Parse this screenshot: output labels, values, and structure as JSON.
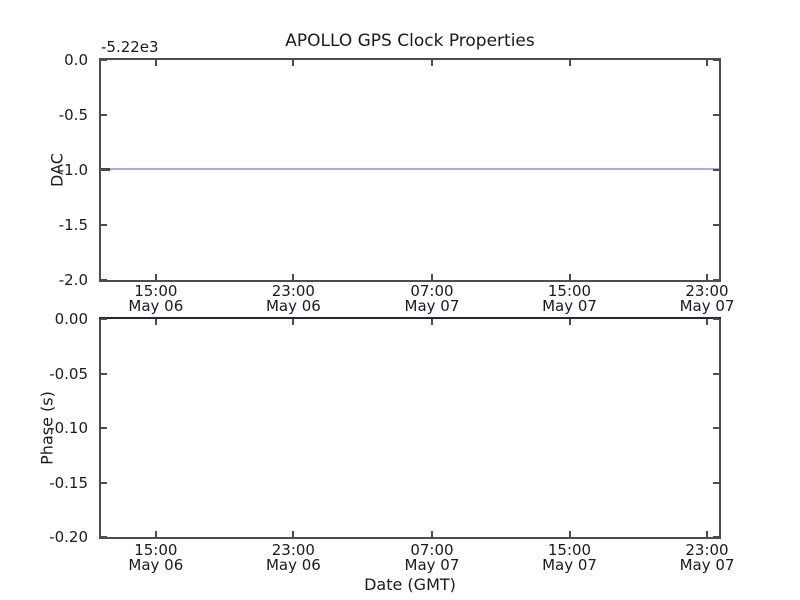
{
  "title": "APOLLO GPS Clock Properties",
  "colors": {
    "background": "#ffffff",
    "spine": "#4d4d4d",
    "dac_line": "#a3a8f0",
    "dac_line_start": "#3c3c6e",
    "phase_line": "#23234e"
  },
  "top_plot": {
    "offset_text": "-5.22e3",
    "ylabel": "DAC",
    "yticks": [
      "0.0",
      "-0.5",
      "-1.0",
      "-1.5",
      "-2.0"
    ]
  },
  "bottom_plot": {
    "ylabel": "Phase (s)",
    "xlabel": "Date (GMT)",
    "yticks": [
      "0.00",
      "-0.05",
      "-0.10",
      "-0.15",
      "-0.20"
    ]
  },
  "xticks": {
    "times": [
      "15:00",
      "23:00",
      "07:00",
      "15:00",
      "23:00"
    ],
    "dates": [
      "May 06",
      "May 06",
      "May 07",
      "May 07",
      "May 07"
    ]
  },
  "chart_data": [
    {
      "type": "line",
      "title": "APOLLO GPS Clock Properties",
      "xlabel": "",
      "ylabel": "DAC",
      "y_offset_text": "-5.22e3",
      "ylim": [
        -2.0,
        0.0
      ],
      "ytick_values": [
        0.0,
        -0.5,
        -1.0,
        -1.5,
        -2.0
      ],
      "x_tick_labels": [
        "15:00 May 06",
        "23:00 May 06",
        "07:00 May 07",
        "15:00 May 07",
        "23:00 May 07"
      ],
      "grid": false,
      "legend": false,
      "series": [
        {
          "name": "DAC",
          "shape": "constant horizontal line spanning full x-range",
          "value": -1.0,
          "value_with_offset_applied": -5221.0,
          "color": "#a3a8f0",
          "note": "short darker blue segment at extreme left where dense data points overlap"
        }
      ]
    },
    {
      "type": "line",
      "title": "",
      "xlabel": "Date (GMT)",
      "ylabel": "Phase (s)",
      "ylim": [
        -0.2,
        0.0
      ],
      "ytick_values": [
        0.0,
        -0.05,
        -0.1,
        -0.15,
        -0.2
      ],
      "x_tick_labels": [
        "15:00 May 06",
        "23:00 May 06",
        "07:00 May 07",
        "15:00 May 07",
        "23:00 May 07"
      ],
      "grid": false,
      "legend": false,
      "series": [
        {
          "name": "Phase",
          "shape": "constant horizontal line spanning full x-range",
          "value": 0.0,
          "color": "#23234e",
          "note": "line sits at top axis limit, overlapping the top spine (renders navy)"
        }
      ]
    }
  ]
}
